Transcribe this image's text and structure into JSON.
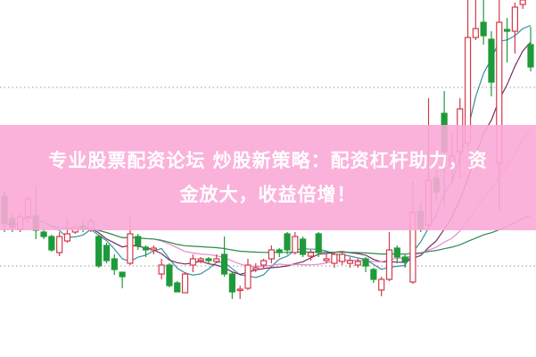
{
  "banner": {
    "line1": "专业股票配资论坛 炒股新策略：配资杠杆助力，资",
    "line2": "金放大，收益倍增！"
  },
  "chart_data": {
    "type": "candlestick",
    "title": "",
    "xlabel": "",
    "ylabel": "",
    "grid": "dotted horizontal",
    "colors": {
      "up": "#d23a4a",
      "down": "#1f9a3a",
      "neutral": "#8a8080",
      "ma": [
        "#3a8fa0",
        "#7a2a5a",
        "#e58ad0",
        "#2a8a50"
      ]
    },
    "moving_averages": [
      5,
      10,
      20,
      60
    ],
    "ylim": [
      0,
      400
    ],
    "candles": [
      [
        180,
        185,
        140,
        150
      ],
      [
        155,
        160,
        140,
        145
      ],
      [
        143,
        160,
        140,
        157
      ],
      [
        157,
        180,
        150,
        177
      ],
      [
        158,
        192,
        132,
        142
      ],
      [
        140,
        145,
        132,
        135
      ],
      [
        135,
        137,
        118,
        120
      ],
      [
        117,
        140,
        113,
        135
      ],
      [
        130,
        155,
        128,
        138
      ],
      [
        140,
        150,
        138,
        145
      ],
      [
        147,
        155,
        140,
        145
      ],
      [
        143,
        155,
        140,
        152
      ],
      [
        135,
        137,
        100,
        102
      ],
      [
        125,
        128,
        105,
        108
      ],
      [
        110,
        115,
        92,
        98
      ],
      [
        95,
        95,
        77,
        90
      ],
      [
        105,
        157,
        103,
        138
      ],
      [
        135,
        138,
        120,
        125
      ],
      [
        123,
        125,
        112,
        120
      ],
      [
        120,
        125,
        115,
        122
      ],
      [
        93,
        110,
        87,
        103
      ],
      [
        103,
        105,
        78,
        80
      ],
      [
        83,
        85,
        73,
        73
      ],
      [
        72,
        95,
        72,
        93
      ],
      [
        103,
        115,
        95,
        110
      ],
      [
        108,
        112,
        105,
        110
      ],
      [
        110,
        112,
        105,
        108
      ],
      [
        107,
        115,
        105,
        110
      ],
      [
        115,
        135,
        90,
        93
      ],
      [
        93,
        95,
        65,
        73
      ],
      [
        75,
        80,
        65,
        76
      ],
      [
        77,
        110,
        75,
        103
      ],
      [
        98,
        105,
        95,
        100
      ],
      [
        103,
        110,
        100,
        108
      ],
      [
        110,
        125,
        105,
        120
      ],
      [
        120,
        122,
        112,
        117
      ],
      [
        138,
        140,
        115,
        120
      ],
      [
        117,
        140,
        115,
        135
      ],
      [
        132,
        135,
        112,
        115
      ],
      [
        113,
        120,
        108,
        117
      ],
      [
        138,
        140,
        112,
        117
      ],
      [
        108,
        115,
        105,
        110
      ],
      [
        105,
        118,
        100,
        115
      ],
      [
        107,
        118,
        103,
        115
      ],
      [
        105,
        112,
        100,
        108
      ],
      [
        103,
        110,
        100,
        107
      ],
      [
        110,
        112,
        95,
        102
      ],
      [
        98,
        100,
        83,
        87
      ],
      [
        75,
        90,
        68,
        87
      ],
      [
        87,
        140,
        85,
        120
      ],
      [
        122,
        125,
        105,
        112
      ],
      [
        112,
        115,
        100,
        107
      ],
      [
        84,
        197,
        82,
        162
      ],
      [
        163,
        173,
        140,
        144
      ],
      [
        148,
        290,
        145,
        198
      ],
      [
        200,
        210,
        175,
        185
      ],
      [
        273,
        298,
        170,
        230
      ],
      [
        215,
        250,
        195,
        225
      ],
      [
        230,
        290,
        200,
        278
      ],
      [
        240,
        400,
        235,
        358
      ],
      [
        358,
        400,
        355,
        368
      ],
      [
        375,
        400,
        350,
        360
      ],
      [
        356,
        365,
        292,
        308
      ],
      [
        217,
        400,
        165,
        375
      ],
      [
        367,
        380,
        330,
        365
      ],
      [
        365,
        397,
        340,
        392
      ],
      [
        395,
        400,
        390,
        400
      ],
      [
        350,
        370,
        320,
        325
      ]
    ],
    "candle_format": [
      "open",
      "high",
      "low",
      "close"
    ]
  }
}
